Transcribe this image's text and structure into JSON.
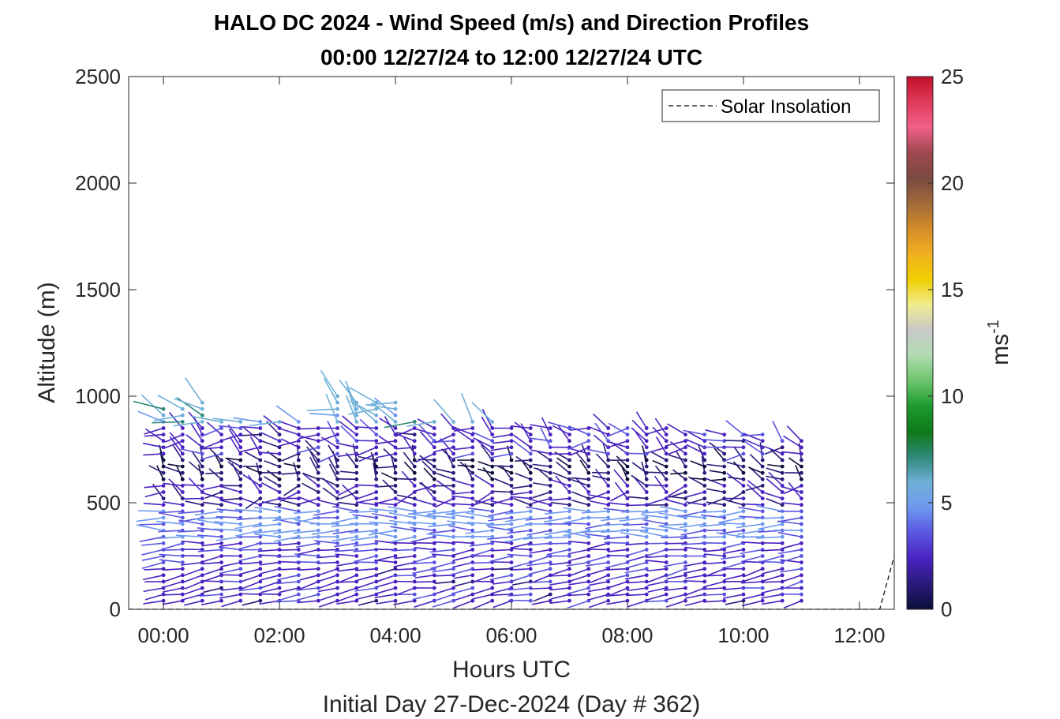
{
  "chart_data": {
    "type": "wind-barb-profile",
    "title": "HALO DC 2024 - Wind Speed (m/s) and Direction Profiles",
    "subtitle": "00:00 12/27/24 to 12:00 12/27/24  UTC",
    "xlabel": "Hours UTC",
    "xlabel2": "Initial Day 27-Dec-2024 (Day # 362)",
    "ylabel": "Altitude (m)",
    "xlim": [
      -0.6,
      12.6
    ],
    "ylim": [
      0,
      2500
    ],
    "xticks": [
      0,
      2,
      4,
      6,
      8,
      10,
      12
    ],
    "xtick_labels": [
      "00:00",
      "02:00",
      "04:00",
      "06:00",
      "08:00",
      "10:00",
      "12:00"
    ],
    "yticks": [
      0,
      500,
      1000,
      1500,
      2000,
      2500
    ],
    "ytick_labels": [
      "0",
      "500",
      "1000",
      "1500",
      "2000",
      "2500"
    ],
    "grid": false,
    "legend": {
      "label": "Solar Insolation",
      "placement": "top-right",
      "line_style": "dashed"
    },
    "colorbar": {
      "label": "ms",
      "label_sup": "-1",
      "range": [
        0,
        25
      ],
      "ticks": [
        0,
        5,
        10,
        15,
        20,
        25
      ],
      "tick_labels": [
        "0",
        "5",
        "10",
        "15",
        "20",
        "25"
      ],
      "colors": [
        "#0b0f3a",
        "#2a1a7a",
        "#4a22c0",
        "#5a55e0",
        "#6e98f0",
        "#70b0d8",
        "#2f8a78",
        "#0f7a18",
        "#1e9a2e",
        "#6cc46c",
        "#b0dcb0",
        "#c8c8c8",
        "#f0ec90",
        "#f0d000",
        "#f0b020",
        "#d48c28",
        "#a06a3a",
        "#7a4a40",
        "#a04850",
        "#f0608a",
        "#e03a5a",
        "#c0102a"
      ]
    },
    "profile_times_hours": [
      0,
      0.33,
      0.67,
      1.0,
      1.33,
      1.67,
      2.0,
      2.33,
      2.67,
      3.0,
      3.33,
      3.67,
      4.0,
      4.33,
      4.67,
      5.0,
      5.33,
      5.67,
      6.0,
      6.33,
      6.67,
      7.0,
      7.33,
      7.67,
      8.0,
      8.33,
      8.67,
      9.0,
      9.33,
      9.67,
      10.0,
      10.33,
      10.67,
      11.0
    ],
    "profile_top_altitude_m": [
      950,
      960,
      990,
      900,
      905,
      905,
      895,
      880,
      870,
      1000,
      995,
      985,
      995,
      905,
      900,
      890,
      885,
      880,
      875,
      875,
      870,
      865,
      865,
      860,
      870,
      860,
      850,
      845,
      845,
      840,
      830,
      825,
      810,
      790
    ],
    "wind_speed_by_layer": [
      {
        "altitude_range_m": [
          30,
          200
        ],
        "speed_ms": 2.5,
        "direction_deg": 260
      },
      {
        "altitude_range_m": [
          200,
          330
        ],
        "speed_ms": 3.0,
        "direction_deg": 265
      },
      {
        "altitude_range_m": [
          330,
          480
        ],
        "speed_ms": 4.5,
        "direction_deg": 270
      },
      {
        "altitude_range_m": [
          480,
          600
        ],
        "speed_ms": 2.0,
        "direction_deg": 280
      },
      {
        "altitude_range_m": [
          600,
          720
        ],
        "speed_ms": 1.0,
        "direction_deg": 310
      },
      {
        "altitude_range_m": [
          720,
          880
        ],
        "speed_ms": 2.5,
        "direction_deg": 290
      },
      {
        "altitude_range_m": [
          880,
          1000
        ],
        "speed_ms": 6.0,
        "direction_deg": 300
      }
    ],
    "solar_insolation": {
      "x": [
        -0.6,
        12.35,
        12.6
      ],
      "y": [
        0,
        0,
        250
      ]
    }
  }
}
